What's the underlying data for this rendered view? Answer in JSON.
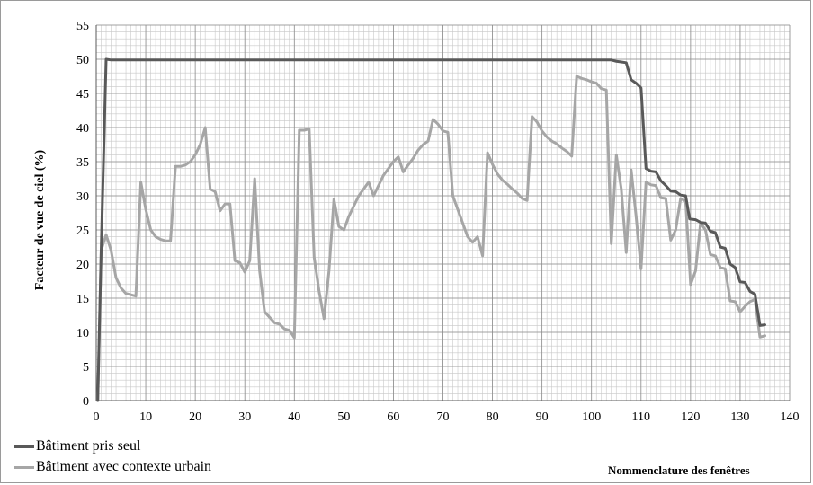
{
  "chart_data": {
    "type": "line",
    "xlabel": "Nommenclature des fenêtres",
    "ylabel": "Facteur de vue de ciel (%)",
    "xlim": [
      0,
      140
    ],
    "ylim": [
      0,
      55
    ],
    "xticks": [
      0,
      10,
      20,
      30,
      40,
      50,
      60,
      70,
      80,
      90,
      100,
      110,
      120,
      130,
      140
    ],
    "yticks": [
      0,
      5,
      10,
      15,
      20,
      25,
      30,
      35,
      40,
      45,
      50,
      55
    ],
    "grid": true,
    "legend_position": "bottom-left",
    "series": [
      {
        "name": "Bâtiment pris seul",
        "color": "#595959",
        "points": [
          [
            0.3,
            0
          ],
          [
            1,
            22
          ],
          [
            2,
            50
          ],
          [
            3,
            49.9
          ],
          [
            20,
            49.9
          ],
          [
            40,
            49.9
          ],
          [
            60,
            49.9
          ],
          [
            80,
            49.9
          ],
          [
            100,
            49.9
          ],
          [
            104,
            49.9
          ],
          [
            105,
            49.7
          ],
          [
            106,
            49.6
          ],
          [
            107,
            49.5
          ],
          [
            108,
            47
          ],
          [
            109,
            46.5
          ],
          [
            110,
            45.8
          ],
          [
            111,
            34
          ],
          [
            112,
            33.6
          ],
          [
            113,
            33.5
          ],
          [
            114,
            32.2
          ],
          [
            115,
            31.5
          ],
          [
            116,
            30.7
          ],
          [
            117,
            30.6
          ],
          [
            118,
            30.1
          ],
          [
            119,
            30
          ],
          [
            119.8,
            26.6
          ],
          [
            121,
            26.5
          ],
          [
            122,
            26.1
          ],
          [
            123,
            26
          ],
          [
            124,
            24.8
          ],
          [
            125,
            24.6
          ],
          [
            126,
            22.5
          ],
          [
            127,
            22.3
          ],
          [
            128,
            20
          ],
          [
            129,
            19.5
          ],
          [
            130,
            17.4
          ],
          [
            131,
            17.3
          ],
          [
            132,
            16
          ],
          [
            133,
            15.6
          ],
          [
            134,
            11
          ],
          [
            135,
            11.1
          ]
        ]
      },
      {
        "name": "Bâtiment avec contexte urbain",
        "color": "#a6a6a6",
        "points": [
          [
            0.3,
            0
          ],
          [
            1,
            22
          ],
          [
            2,
            24.3
          ],
          [
            3,
            22
          ],
          [
            4,
            18
          ],
          [
            5,
            16.5
          ],
          [
            6,
            15.7
          ],
          [
            7,
            15.5
          ],
          [
            8,
            15.3
          ],
          [
            9,
            32
          ],
          [
            10,
            28
          ],
          [
            11,
            25
          ],
          [
            12,
            24
          ],
          [
            13,
            23.6
          ],
          [
            14,
            23.4
          ],
          [
            15,
            23.4
          ],
          [
            16,
            34.3
          ],
          [
            17,
            34.3
          ],
          [
            18,
            34.5
          ],
          [
            19,
            35
          ],
          [
            20,
            36
          ],
          [
            21,
            37.5
          ],
          [
            22,
            40
          ],
          [
            23,
            31
          ],
          [
            24,
            30.6
          ],
          [
            25,
            27.8
          ],
          [
            26,
            28.8
          ],
          [
            27,
            28.8
          ],
          [
            28,
            20.5
          ],
          [
            29,
            20.2
          ],
          [
            30,
            18.8
          ],
          [
            31,
            20.5
          ],
          [
            32,
            32.5
          ],
          [
            33,
            19
          ],
          [
            34,
            13
          ],
          [
            35,
            12.2
          ],
          [
            36,
            11.4
          ],
          [
            37,
            11.2
          ],
          [
            38,
            10.5
          ],
          [
            39,
            10.3
          ],
          [
            40,
            9.2
          ],
          [
            41,
            39.6
          ],
          [
            42,
            39.6
          ],
          [
            43,
            39.8
          ],
          [
            44,
            21
          ],
          [
            45,
            16
          ],
          [
            46,
            12
          ],
          [
            47,
            19
          ],
          [
            48,
            29.5
          ],
          [
            49,
            25.5
          ],
          [
            50,
            25
          ],
          [
            51,
            27
          ],
          [
            52,
            28.5
          ],
          [
            53,
            30
          ],
          [
            54,
            31
          ],
          [
            55,
            32
          ],
          [
            56,
            30
          ],
          [
            57,
            31.5
          ],
          [
            58,
            33
          ],
          [
            59,
            34
          ],
          [
            60,
            35
          ],
          [
            61,
            35.7
          ],
          [
            62,
            33.5
          ],
          [
            63,
            34.5
          ],
          [
            64,
            35.5
          ],
          [
            65,
            36.7
          ],
          [
            66,
            37.5
          ],
          [
            67,
            38
          ],
          [
            68,
            41.2
          ],
          [
            69,
            40.5
          ],
          [
            70,
            39.5
          ],
          [
            71,
            39.3
          ],
          [
            72,
            30
          ],
          [
            73,
            28
          ],
          [
            74,
            26
          ],
          [
            75,
            24
          ],
          [
            76,
            23.2
          ],
          [
            77,
            24
          ],
          [
            78,
            21.2
          ],
          [
            79,
            36.3
          ],
          [
            80,
            34.6
          ],
          [
            81,
            33.2
          ],
          [
            82,
            32.3
          ],
          [
            83,
            31.7
          ],
          [
            84,
            31
          ],
          [
            85,
            30.4
          ],
          [
            86,
            29.6
          ],
          [
            87,
            29.3
          ],
          [
            88,
            41.6
          ],
          [
            89,
            40.8
          ],
          [
            90,
            39.5
          ],
          [
            91,
            38.6
          ],
          [
            92,
            38
          ],
          [
            93,
            37.6
          ],
          [
            94,
            37
          ],
          [
            95,
            36.5
          ],
          [
            96,
            35.8
          ],
          [
            97,
            47.5
          ],
          [
            98,
            47.2
          ],
          [
            99,
            47
          ],
          [
            100,
            46.7
          ],
          [
            101,
            46.5
          ],
          [
            102,
            45.7
          ],
          [
            103,
            45.5
          ],
          [
            104,
            23
          ],
          [
            105,
            36
          ],
          [
            106,
            31
          ],
          [
            107,
            21.7
          ],
          [
            108,
            33.8
          ],
          [
            109,
            27
          ],
          [
            110,
            19.3
          ],
          [
            111,
            32
          ],
          [
            112,
            31.6
          ],
          [
            113,
            31.5
          ],
          [
            114,
            29.7
          ],
          [
            115,
            29.6
          ],
          [
            116,
            23.5
          ],
          [
            117,
            25
          ],
          [
            118,
            29.6
          ],
          [
            119,
            29.2
          ],
          [
            120,
            17
          ],
          [
            121,
            19
          ],
          [
            122,
            26
          ],
          [
            123,
            25
          ],
          [
            124,
            21.4
          ],
          [
            125,
            21.2
          ],
          [
            126,
            19.5
          ],
          [
            127,
            19.3
          ],
          [
            128,
            14.6
          ],
          [
            129,
            14.5
          ],
          [
            130,
            13
          ],
          [
            131,
            13.8
          ],
          [
            132,
            14.5
          ],
          [
            133,
            14.8
          ],
          [
            134,
            9.3
          ],
          [
            135,
            9.5
          ]
        ]
      }
    ]
  }
}
